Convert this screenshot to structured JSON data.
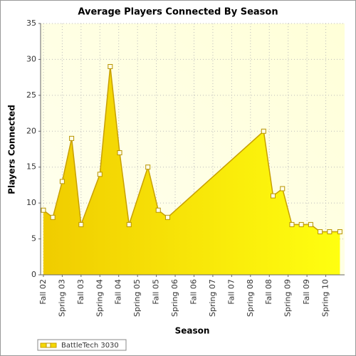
{
  "chart_data": {
    "type": "area",
    "title": "Average Players Connected By Season",
    "x_label": "Season",
    "y_label": "Players Connected",
    "x": [
      0,
      0.5,
      1,
      1.5,
      2,
      3,
      3.55,
      4.05,
      4.55,
      5.55,
      6.1,
      6.6,
      11.7,
      12.2,
      12.7,
      13.2,
      13.7,
      14.2,
      14.7,
      15.2,
      15.75
    ],
    "series": [
      {
        "name": "BattleTech 3030",
        "color": "#f5d800",
        "values": [
          9,
          8,
          13,
          19,
          7,
          14,
          29,
          17,
          7,
          15,
          9,
          8,
          20,
          11,
          12,
          7,
          7,
          7,
          6,
          6,
          6
        ]
      }
    ],
    "xlim": [
      -0.15,
      16
    ],
    "xticks": [
      {
        "value": 0,
        "label": "Fall 02"
      },
      {
        "value": 1,
        "label": "Spring 03"
      },
      {
        "value": 2,
        "label": "Fall 03"
      },
      {
        "value": 3,
        "label": "Spring 04"
      },
      {
        "value": 4,
        "label": "Fall 04"
      },
      {
        "value": 5,
        "label": "Spring 05"
      },
      {
        "value": 6,
        "label": "Fall 05"
      },
      {
        "value": 7,
        "label": "Spring 06"
      },
      {
        "value": 8,
        "label": "Fall 06"
      },
      {
        "value": 9,
        "label": "Spring 07"
      },
      {
        "value": 10,
        "label": "Fall 07"
      },
      {
        "value": 11,
        "label": "Spring 08"
      },
      {
        "value": 12,
        "label": "Fall 08"
      },
      {
        "value": 13,
        "label": "Spring 09"
      },
      {
        "value": 14,
        "label": "Fall 09"
      },
      {
        "value": 15,
        "label": "Spring 10"
      }
    ],
    "ylim": [
      0,
      35
    ],
    "yticks": [
      0,
      5,
      10,
      15,
      20,
      25,
      30,
      35
    ],
    "grid": true,
    "legend": "bottom-left"
  }
}
